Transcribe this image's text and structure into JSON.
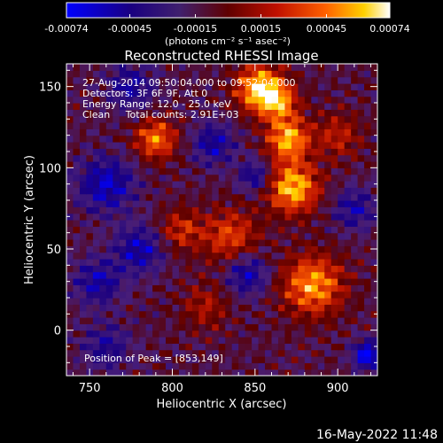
{
  "chart_data": {
    "type": "heatmap",
    "title": "Reconstructed RHESSI Image",
    "xlabel": "Heliocentric X (arcsec)",
    "ylabel": "Heliocentric Y (arcsec)",
    "xlim": [
      736,
      924
    ],
    "ylim": [
      -28,
      164
    ],
    "x_ticks": [
      750,
      800,
      850,
      900
    ],
    "y_ticks": [
      0,
      50,
      100,
      150
    ],
    "colorbar": {
      "range": [
        -0.00074,
        0.00074
      ],
      "tick_values": [
        -0.00074,
        -0.00045,
        -0.00015,
        0.00015,
        0.00045,
        0.00074
      ],
      "tick_labels": [
        "-0.00074",
        "-0.00045",
        "-0.00015",
        "0.00015",
        "0.00045",
        "0.00074"
      ],
      "unit_label": "(photons cm⁻² s⁻¹ asec⁻²)"
    },
    "annotations": [
      "27-Aug-2014 09:50:04.000 to 09:52:04.000",
      "Detectors: 3F 6F 9F, Att 0",
      "Energy Range: 12.0 - 25.0 keV",
      "Clean     Total counts: 2.91E+03"
    ],
    "peak_label": "Position of Peak = [853,149]",
    "peak_position": [
      853,
      149
    ],
    "sources": [
      {
        "x": 853,
        "y": 149,
        "sigma": 10,
        "amp": 1.0
      },
      {
        "x": 870,
        "y": 118,
        "sigma": 9,
        "amp": 0.85
      },
      {
        "x": 873,
        "y": 88,
        "sigma": 11,
        "amp": 0.9
      },
      {
        "x": 790,
        "y": 118,
        "sigma": 9,
        "amp": 0.7
      },
      {
        "x": 885,
        "y": 28,
        "sigma": 13,
        "amp": 0.8
      },
      {
        "x": 835,
        "y": 58,
        "sigma": 12,
        "amp": 0.55
      },
      {
        "x": 805,
        "y": 62,
        "sigma": 9,
        "amp": 0.45
      },
      {
        "x": 865,
        "y": 140,
        "sigma": 8,
        "amp": 0.6
      },
      {
        "x": 820,
        "y": 15,
        "sigma": 10,
        "amp": 0.35
      },
      {
        "x": 900,
        "y": 120,
        "sigma": 10,
        "amp": 0.4
      },
      {
        "x": 760,
        "y": 90,
        "sigma": 12,
        "amp": -0.6
      },
      {
        "x": 780,
        "y": 50,
        "sigma": 10,
        "amp": -0.55
      },
      {
        "x": 755,
        "y": 30,
        "sigma": 10,
        "amp": -0.5
      },
      {
        "x": 845,
        "y": 35,
        "sigma": 9,
        "amp": -0.55
      },
      {
        "x": 825,
        "y": 115,
        "sigma": 9,
        "amp": -0.5
      },
      {
        "x": 775,
        "y": 150,
        "sigma": 10,
        "amp": -0.45
      },
      {
        "x": 910,
        "y": 75,
        "sigma": 9,
        "amp": -0.45
      },
      {
        "x": 850,
        "y": 95,
        "sigma": 7,
        "amp": -0.5
      },
      {
        "x": 760,
        "y": -10,
        "sigma": 10,
        "amp": -0.4
      },
      {
        "x": 918,
        "y": -15,
        "sigma": 6,
        "amp": -0.8
      }
    ]
  },
  "footer": {
    "timestamp": "16-May-2022 11:48"
  }
}
